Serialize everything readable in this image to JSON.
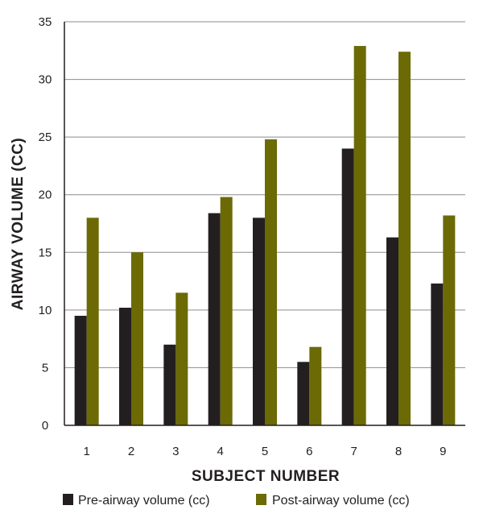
{
  "chart_data": {
    "type": "bar",
    "xlabel": "SUBJECT NUMBER",
    "ylabel": "AIRWAY VOLUME (CC)",
    "ylim": [
      0,
      35
    ],
    "yticks": [
      0,
      5,
      10,
      15,
      20,
      25,
      30,
      35
    ],
    "grid": true,
    "legend_position": "bottom",
    "categories": [
      "1",
      "2",
      "3",
      "4",
      "5",
      "6",
      "7",
      "8",
      "9"
    ],
    "series": [
      {
        "name": "Pre-airway volume (cc)",
        "color": "#231f20",
        "values": [
          9.5,
          10.2,
          7.0,
          18.4,
          18.0,
          5.5,
          24.0,
          16.3,
          12.3
        ]
      },
      {
        "name": "Post-airway volume (cc)",
        "color": "#6b6a05",
        "values": [
          18.0,
          15.0,
          11.5,
          19.8,
          24.8,
          6.8,
          32.9,
          32.4,
          18.2
        ]
      }
    ]
  }
}
